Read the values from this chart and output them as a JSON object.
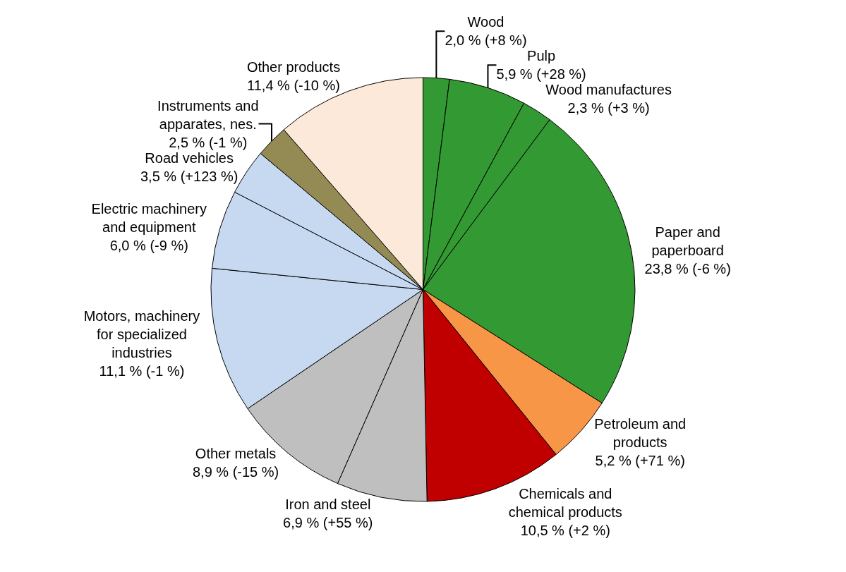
{
  "chart_data": {
    "type": "pie",
    "categories": [
      "Wood",
      "Pulp",
      "Wood manufactures",
      "Paper and\npaperboard",
      "Petroleum and\nproducts",
      "Chemicals and\nchemical products",
      "Iron and steel",
      "Other metals",
      "Motors, machinery\nfor specialized\nindustries",
      "Electric machinery\nand equipment",
      "Road vehicles",
      "Instruments and\napparates, nes.",
      "Other products"
    ],
    "values": [
      2.0,
      5.9,
      2.3,
      23.8,
      5.2,
      10.5,
      6.9,
      8.9,
      11.1,
      6.0,
      3.5,
      2.5,
      11.4
    ],
    "value_labels": [
      "2,0 % (+8 %)",
      "5,9 % (+28 %)",
      "2,3 % (+3 %)",
      "23,8 % (-6 %)",
      "5,2 % (+71 %)",
      "10,5 % (+2 %)",
      "6,9 % (+55 %)",
      "8,9 % (-15 %)",
      "11,1 % (-1 %)",
      "6,0 % (-9 %)",
      "3,5 % (+123 %)",
      "2,5 % (-1 %)",
      "11,4 % (-10 %)"
    ],
    "colors": [
      "#339933",
      "#339933",
      "#339933",
      "#339933",
      "#f79646",
      "#c00000",
      "#bfbfbf",
      "#bfbfbf",
      "#c6d9f1",
      "#c6d9f1",
      "#c6d9f1",
      "#948a54",
      "#fde9d9"
    ],
    "legend": false
  }
}
